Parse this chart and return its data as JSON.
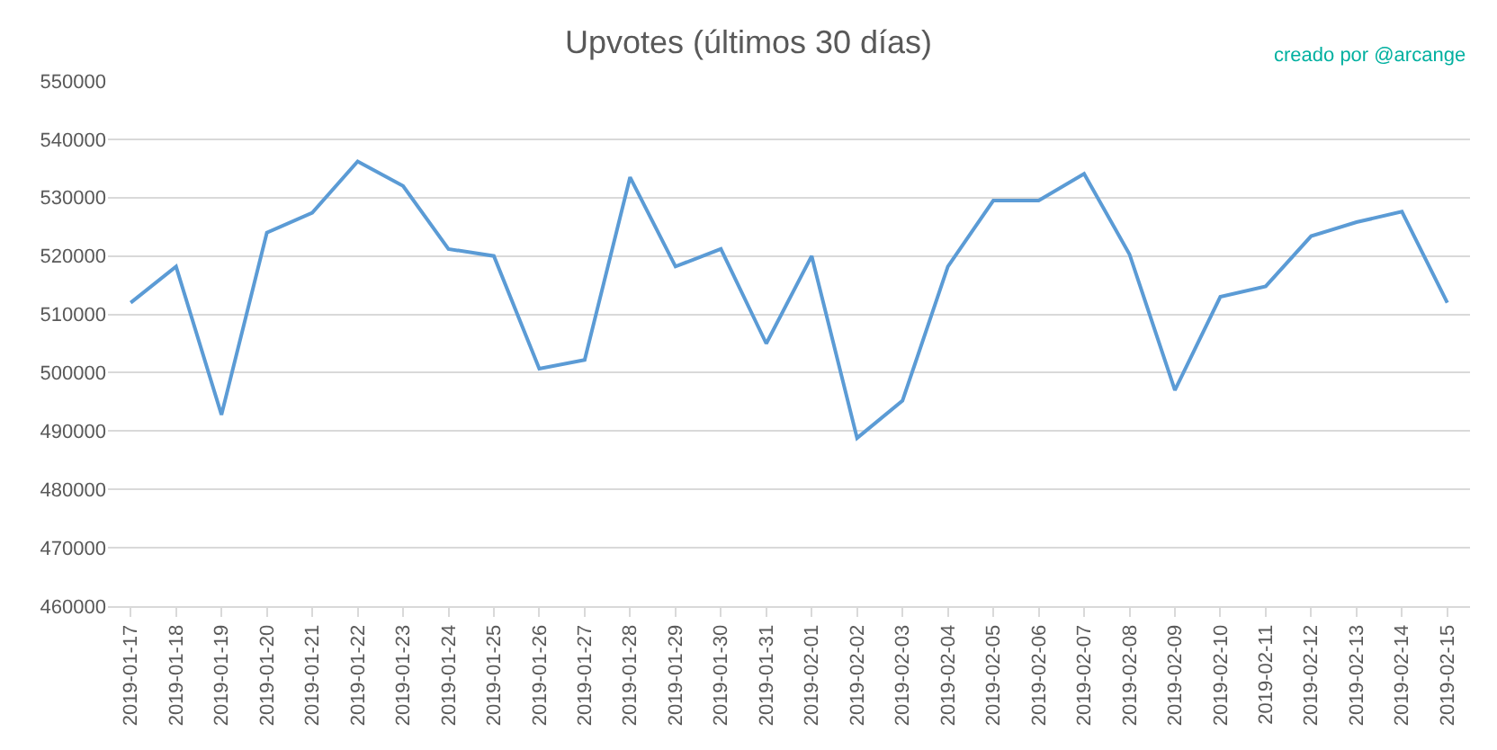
{
  "chart_data": {
    "type": "line",
    "title": "Upvotes (últimos 30 días)",
    "annotations": [
      "creado por @arcange"
    ],
    "categories": [
      "2019-01-17",
      "2019-01-18",
      "2019-01-19",
      "2019-01-20",
      "2019-01-21",
      "2019-01-22",
      "2019-01-23",
      "2019-01-24",
      "2019-01-25",
      "2019-01-26",
      "2019-01-27",
      "2019-01-28",
      "2019-01-29",
      "2019-01-30",
      "2019-01-31",
      "2019-02-01",
      "2019-02-02",
      "2019-02-03",
      "2019-02-04",
      "2019-02-05",
      "2019-02-06",
      "2019-02-07",
      "2019-02-08",
      "2019-02-09",
      "2019-02-10",
      "2019-02-11",
      "2019-02-12",
      "2019-02-13",
      "2019-02-14",
      "2019-02-15"
    ],
    "series": [
      {
        "color": "#5b9bd5",
        "values": [
          512000,
          518200,
          492800,
          524000,
          527400,
          536200,
          532000,
          521200,
          520000,
          500700,
          502200,
          533500,
          518200,
          521200,
          505000,
          520000,
          488800,
          495200,
          518200,
          529500,
          529500,
          534100,
          520300,
          497000,
          513000,
          514800,
          523400,
          525800,
          527600,
          512000
        ]
      }
    ],
    "ylim": [
      460000,
      550000
    ],
    "yticks": [
      460000,
      470000,
      480000,
      490000,
      500000,
      510000,
      520000,
      530000,
      540000,
      550000
    ],
    "grid": "y",
    "marker": "none",
    "line_style": "solid"
  }
}
